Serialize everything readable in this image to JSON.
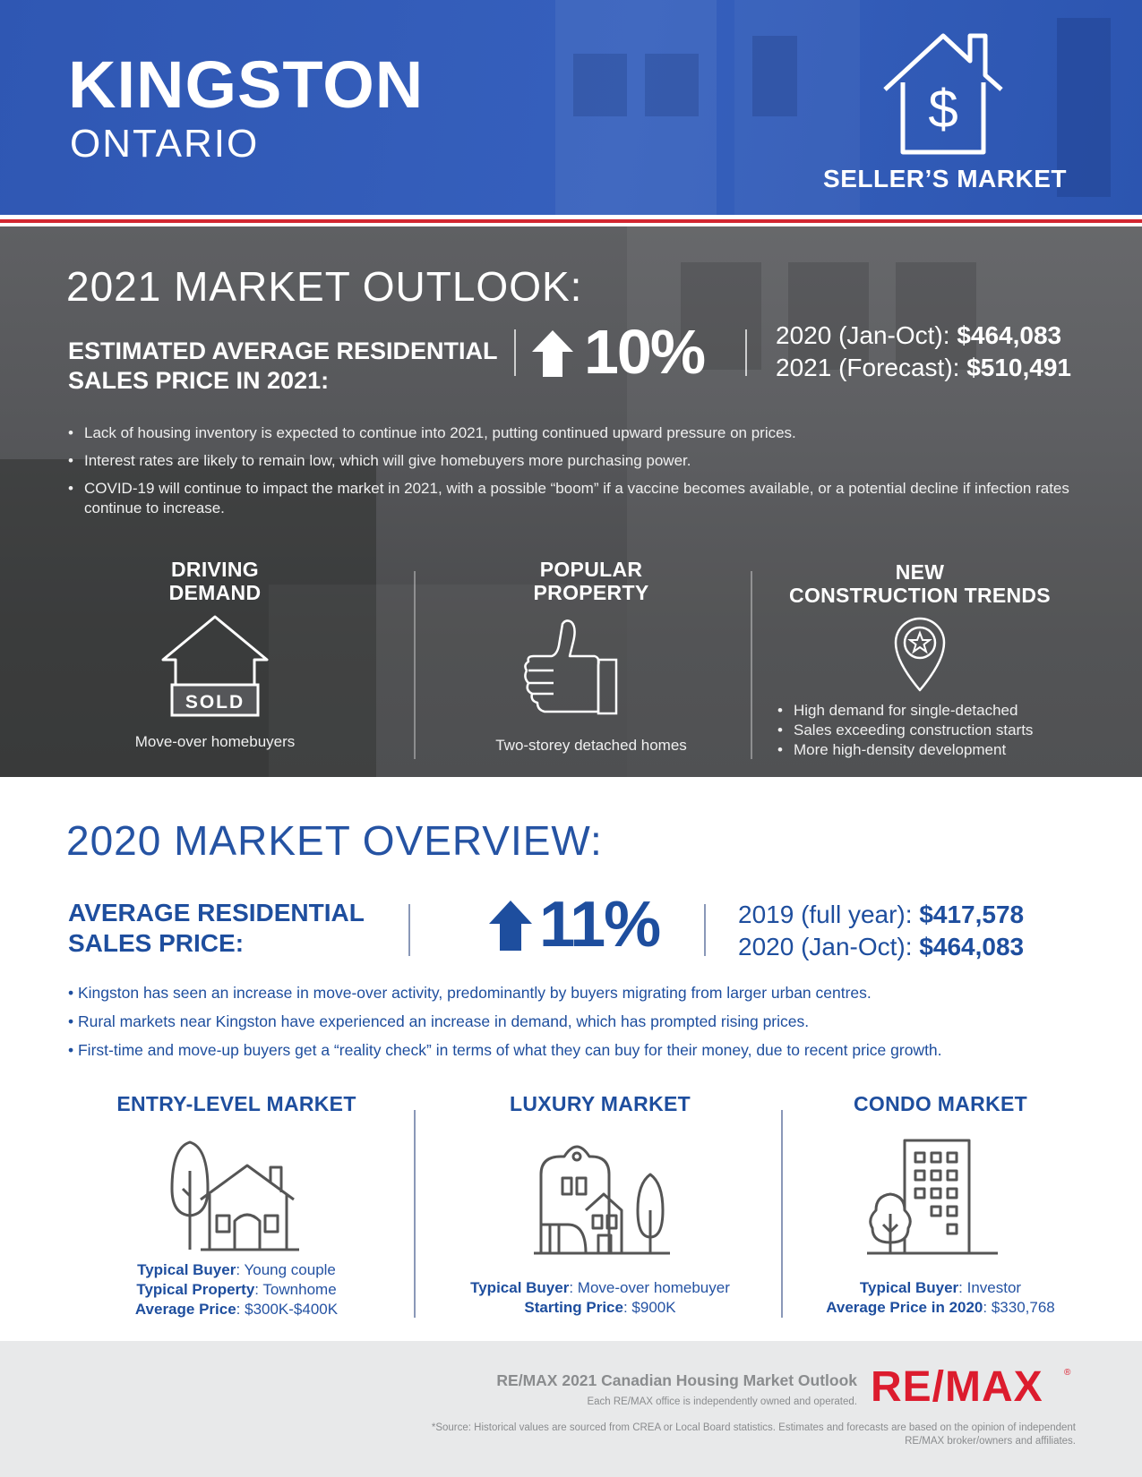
{
  "header": {
    "city": "KINGSTON",
    "province": "ONTARIO",
    "market_type": "SELLER’S MARKET"
  },
  "outlook": {
    "title": "2021 MARKET OUTLOOK:",
    "price_label_line1": "ESTIMATED AVERAGE RESIDENTIAL",
    "price_label_line2": "SALES PRICE IN 2021:",
    "change_pct": "10%",
    "price_2020_label": "2020 (Jan-Oct):",
    "price_2020_value": "$464,083",
    "price_2021_label": "2021 (Forecast):",
    "price_2021_value": "$510,491",
    "bullets": [
      "Lack of housing inventory is expected to continue into 2021, putting continued upward pressure on prices.",
      "Interest rates are likely to remain low, which will give homebuyers more purchasing power.",
      "COVID-19 will continue to impact the market in 2021, with a possible “boom” if a vaccine becomes available, or a potential decline if infection rates continue to increase."
    ],
    "driving_demand": {
      "head_line1": "DRIVING",
      "head_line2": "DEMAND",
      "sign": "SOLD",
      "text": "Move-over homebuyers"
    },
    "popular_property": {
      "head_line1": "POPULAR",
      "head_line2": "PROPERTY",
      "text": "Two-storey detached homes"
    },
    "new_construction": {
      "head_line1": "NEW",
      "head_line2": "CONSTRUCTION TRENDS",
      "items": [
        "High demand for single-detached",
        "Sales exceeding construction starts",
        "More high-density development"
      ]
    }
  },
  "overview": {
    "title": "2020 MARKET OVERVIEW:",
    "price_label_line1": "AVERAGE RESIDENTIAL",
    "price_label_line2": "SALES PRICE:",
    "change_pct": "11%",
    "price_2019_label": "2019 (full year):",
    "price_2019_value": "$417,578",
    "price_2020_label": "2020 (Jan-Oct):",
    "price_2020_value": "$464,083",
    "bullets": [
      "• Kingston has seen an increase in move-over activity, predominantly by buyers migrating from larger urban centres.",
      "• Rural markets near Kingston have experienced an increase in demand, which has prompted rising prices.",
      "• First-time and move-up buyers get a “reality check” in terms of what they can buy for their money, due to recent price growth."
    ],
    "entry_level": {
      "head": "ENTRY-LEVEL MARKET",
      "buyer_label": "Typical Buyer",
      "buyer_value": ": Young couple",
      "property_label": "Typical Property",
      "property_value": ": Townhome",
      "price_label": "Average Price",
      "price_value": ": $300K-$400K"
    },
    "luxury": {
      "head": "LUXURY MARKET",
      "buyer_label": "Typical Buyer",
      "buyer_value": ": Move-over homebuyer",
      "price_label": "Starting Price",
      "price_value": ": $900K"
    },
    "condo": {
      "head": "CONDO MARKET",
      "buyer_label": "Typical Buyer",
      "buyer_value": ": Investor",
      "price_label": "Average Price in 2020",
      "price_value": ": $330,768"
    }
  },
  "footer": {
    "title": "RE/MAX 2021 Canadian Housing Market Outlook",
    "ownership": "Each RE/MAX office is independently owned and operated.",
    "source": "*Source: Historical values are sourced from CREA or Local Board statistics. Estimates and forecasts are based on the opinion of independent RE/MAX broker/owners and affiliates.",
    "logo": "RE/MAX",
    "logo_mark": "®"
  },
  "colors": {
    "header_blue": "#3360bb",
    "overview_blue": "#1e4e9e",
    "stripe_red": "#d22630",
    "outlook_gray": "#555659",
    "footer_gray": "#e8e9ea",
    "remax_red": "#dc1c2e"
  }
}
